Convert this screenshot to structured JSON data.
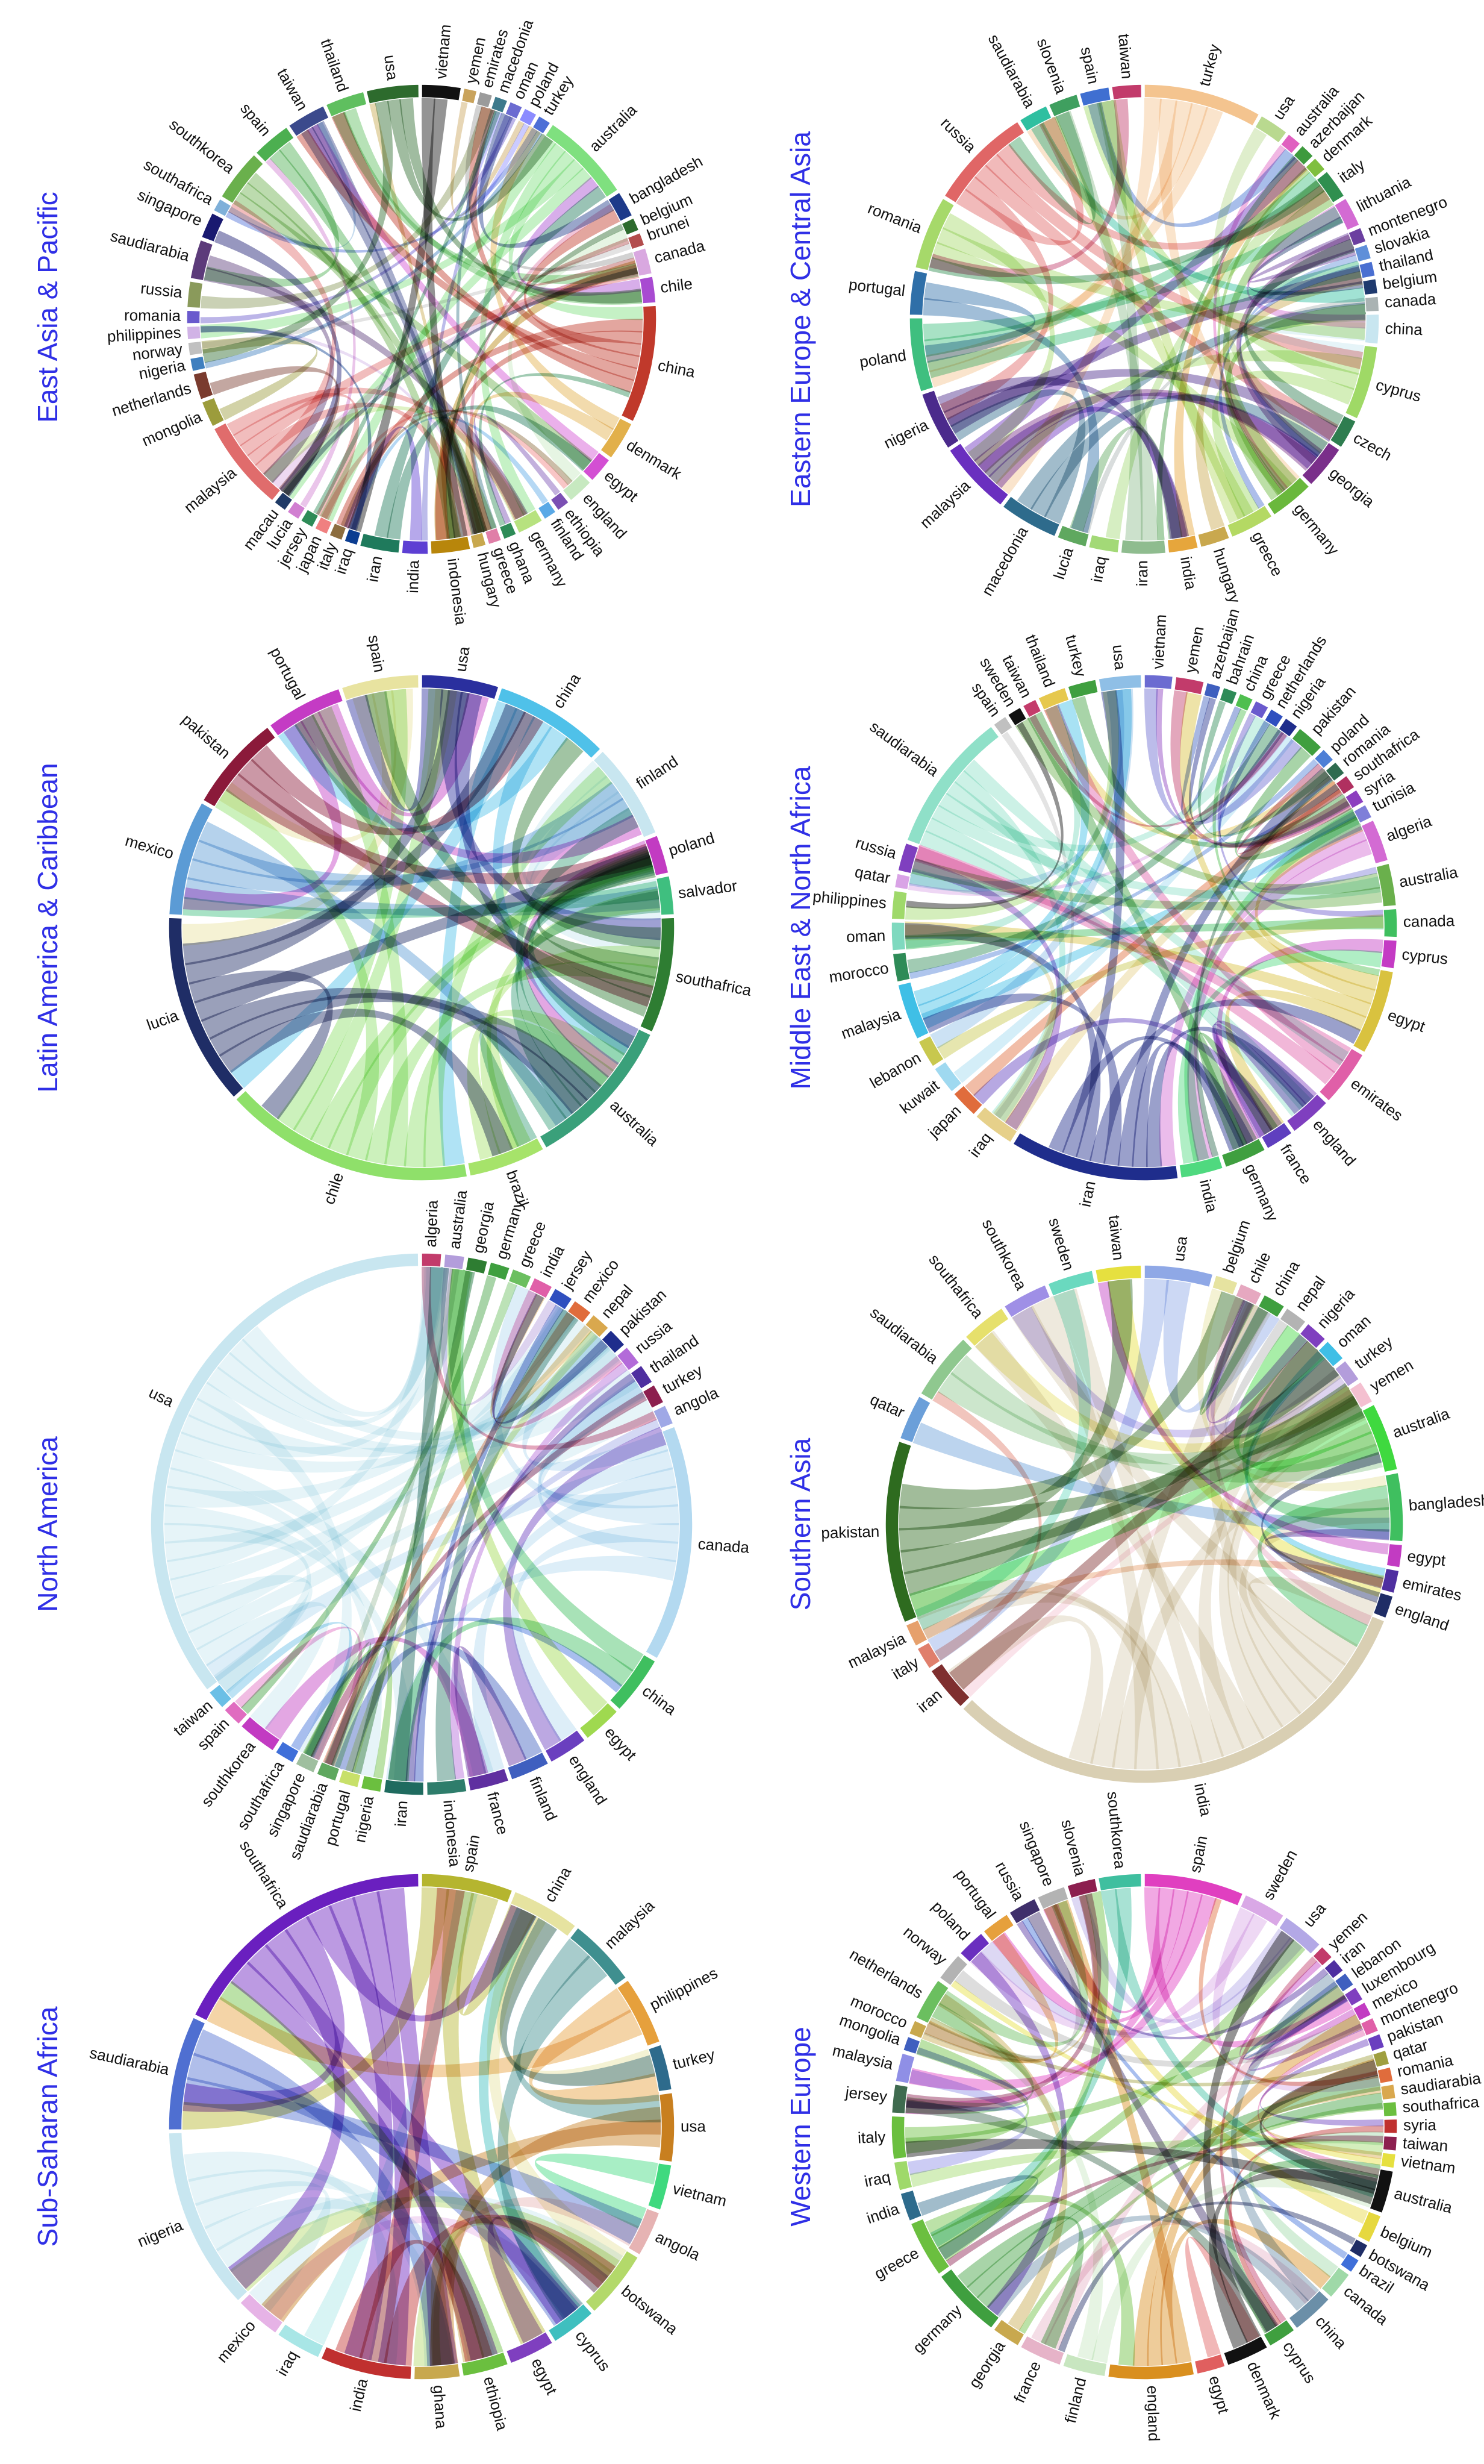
{
  "chart_data": [
    {
      "type": "chord",
      "title": "East Asia & Pacific",
      "countries": [
        "vietnam",
        "yemen",
        "emirates",
        "macedonia",
        "oman",
        "poland",
        "turkey",
        "australia",
        "bangladesh",
        "belgium",
        "brunei",
        "canada",
        "chile",
        "china",
        "denmark",
        "egypt",
        "england",
        "ethiopia",
        "finland",
        "germany",
        "ghana",
        "greece",
        "hungary",
        "indonesia",
        "india",
        "iran",
        "iraq",
        "italy",
        "japan",
        "jersey",
        "lucia",
        "macau",
        "malaysia",
        "mongolia",
        "netherlands",
        "nigeria",
        "norway",
        "philippines",
        "romania",
        "russia",
        "saudiarabia",
        "singapore",
        "southafrica",
        "southkorea",
        "spain",
        "taiwan",
        "thailand",
        "usa"
      ],
      "colors": [
        "#111111",
        "#c9a35c",
        "#9b9b9b",
        "#3d7a8c",
        "#6b6bd1",
        "#8c8cff",
        "#4e6fd6",
        "#7fe07f",
        "#1e3a8a",
        "#2d6b2d",
        "#b34d4d",
        "#d9a8e0",
        "#a84bd1",
        "#c0392b",
        "#e2b04a",
        "#d34fd3",
        "#c7e9c0",
        "#7b4fb3",
        "#5aa9e6",
        "#b7e27f",
        "#2e8b57",
        "#e07fa8",
        "#c8a84e",
        "#b8860b",
        "#5d3fd3",
        "#1f7a5c",
        "#0b3d91",
        "#8c6d3f",
        "#f08080",
        "#2e8b57",
        "#d17fd1",
        "#1f3a66",
        "#e06c6c",
        "#9c9c3c",
        "#7a3b2e",
        "#3f7fbf",
        "#c0c0c0",
        "#d1b3e6",
        "#6a5acd",
        "#8a9a5b",
        "#5c3b7a",
        "#191970",
        "#7fb0d9",
        "#6ab04c",
        "#4caf50",
        "#3b4a8c",
        "#5fbf5f",
        "#2d6b2d"
      ],
      "values": [
        3,
        1,
        1,
        1,
        1,
        1,
        1,
        7,
        2,
        1,
        1,
        2,
        2,
        9,
        3,
        2,
        2,
        1,
        1,
        2,
        1,
        1,
        1,
        3,
        2,
        3,
        1,
        1,
        1,
        1,
        1,
        1,
        7,
        2,
        2,
        1,
        1,
        1,
        1,
        2,
        3,
        2,
        1,
        4,
        3,
        3,
        3,
        4
      ]
    },
    {
      "type": "chord",
      "title": "Eastern Europe & Central Asia",
      "countries": [
        "turkey",
        "usa",
        "australia",
        "azerbaijan",
        "denmark",
        "italy",
        "lithuania",
        "montenegro",
        "slovakia",
        "thailand",
        "belgium",
        "canada",
        "china",
        "cyprus",
        "czech",
        "georgia",
        "germany",
        "greece",
        "hungary",
        "india",
        "iran",
        "iraq",
        "lucia",
        "macedonia",
        "malaysia",
        "nigeria",
        "poland",
        "portugal",
        "romania",
        "russia",
        "saudiarabia",
        "slovenia",
        "spain",
        "taiwan"
      ],
      "colors": [
        "#f4c48f",
        "#b9d98f",
        "#e060c0",
        "#3e9a3e",
        "#7fbf3f",
        "#2f8f4f",
        "#d36bd3",
        "#6b3fa0",
        "#5f8fd9",
        "#4a6fd1",
        "#1f3a6e",
        "#aab3b3",
        "#c8e6f0",
        "#9fd966",
        "#2e7d4f",
        "#7a2f8a",
        "#6ab83c",
        "#b4d963",
        "#c9a84e",
        "#e6a63c",
        "#8fbc8f",
        "#a3d977",
        "#5fa85f",
        "#2e6b8c",
        "#6a2fbf",
        "#4b2a8c",
        "#3fbf7f",
        "#2f6fa8",
        "#a6d96a",
        "#e06666",
        "#2fbfa0",
        "#3f9f5f",
        "#3f6fd1",
        "#c23b6b"
      ],
      "values": [
        8,
        2,
        1,
        1,
        1,
        2,
        2,
        1,
        1,
        1,
        1,
        1,
        2,
        5,
        2,
        3,
        3,
        3,
        2,
        2,
        3,
        2,
        2,
        4,
        5,
        4,
        5,
        3,
        5,
        7,
        2,
        2,
        2,
        2
      ]
    },
    {
      "type": "chord",
      "title": "Latin America & Caribbean",
      "countries": [
        "usa",
        "china",
        "finland",
        "poland",
        "salvador",
        "southafrica",
        "australia",
        "brazil",
        "chile",
        "lucia",
        "mexico",
        "pakistan",
        "portugal",
        "spain"
      ],
      "colors": [
        "#2a2f9e",
        "#4fc1e9",
        "#c8e6f0",
        "#c23bc2",
        "#3fbf7f",
        "#2e7d32",
        "#3aa07a",
        "#a6e36a",
        "#8fe06a",
        "#1f2d66",
        "#5b9bd5",
        "#8b1a3a",
        "#c43bc4",
        "#e8e3a0"
      ],
      "values": [
        4,
        6,
        5,
        2,
        2,
        6,
        8,
        4,
        13,
        10,
        6,
        5,
        4,
        4
      ]
    },
    {
      "type": "chord",
      "title": "Middle East & North Africa",
      "countries": [
        "vietnam",
        "yemen",
        "azerbaijan",
        "bahrain",
        "china",
        "greece",
        "netherlands",
        "nigeria",
        "pakistan",
        "poland",
        "romania",
        "southafrica",
        "syria",
        "tunisia",
        "algeria",
        "australia",
        "canada",
        "cyprus",
        "egypt",
        "emirates",
        "england",
        "france",
        "germany",
        "india",
        "iran",
        "iraq",
        "japan",
        "kuwait",
        "lebanon",
        "malaysia",
        "morocco",
        "oman",
        "philippines",
        "qatar",
        "russia",
        "saudiarabia",
        "spain",
        "sweden",
        "taiwan",
        "thailand",
        "turkey",
        "usa"
      ],
      "colors": [
        "#6b6bd1",
        "#c23b6b",
        "#3f5fbf",
        "#2e8b57",
        "#4fbf4f",
        "#6a5acd",
        "#2f4fbf",
        "#1f2d8c",
        "#3f9f3f",
        "#4e7fd6",
        "#2e6b4f",
        "#b03060",
        "#8c3fbf",
        "#7f7fd9",
        "#d36bd3",
        "#6ab04c",
        "#3fbf5f",
        "#c43bc4",
        "#d9c23f",
        "#e05fa8",
        "#7f3fbf",
        "#5f3fbf",
        "#3f9f3f",
        "#4fd97f",
        "#1f2d8c",
        "#e6d08a",
        "#e06c3c",
        "#9fd9f0",
        "#c8c84e",
        "#3fbfe6",
        "#2e8b57",
        "#7fd9bf",
        "#9fd96a",
        "#d9a3e6",
        "#7f3fbf",
        "#8fe0c8",
        "#c0c0c0",
        "#111111",
        "#c43b6b",
        "#e6c84e",
        "#3f9f3f",
        "#8fbfe6"
      ],
      "values": [
        2,
        2,
        1,
        1,
        1,
        1,
        1,
        1,
        2,
        1,
        1,
        1,
        1,
        1,
        3,
        3,
        2,
        2,
        6,
        4,
        3,
        2,
        3,
        3,
        12,
        3,
        2,
        2,
        2,
        4,
        2,
        2,
        2,
        1,
        2,
        10,
        1,
        1,
        1,
        2,
        2,
        3
      ]
    },
    {
      "type": "chord",
      "title": "North America",
      "countries": [
        "algeria",
        "australia",
        "georgia",
        "germany",
        "greece",
        "india",
        "jersey",
        "mexico",
        "nepal",
        "pakistan",
        "russia",
        "thailand",
        "turkey",
        "angola",
        "canada",
        "china",
        "egypt",
        "england",
        "finland",
        "france",
        "indonesia",
        "iran",
        "nigeria",
        "portugal",
        "saudiarabia",
        "singapore",
        "southafrica",
        "southkorea",
        "spain",
        "taiwan",
        "usa"
      ],
      "colors": [
        "#c23b6b",
        "#b39ddb",
        "#2e7d32",
        "#3f9f3f",
        "#6bbf5f",
        "#e05fa8",
        "#2f4fbf",
        "#e06c3c",
        "#d9a84e",
        "#1f2d8c",
        "#b36bd9",
        "#4f2fa0",
        "#8c1f4f",
        "#9fa8e6",
        "#b3d9f0",
        "#3fbf5f",
        "#9fd94f",
        "#6a3fbf",
        "#3f5fbf",
        "#5f2fa0",
        "#2e7d6b",
        "#1f6b5f",
        "#6bbf3f",
        "#c8e06a",
        "#5fa85f",
        "#9fbf9f",
        "#3f6fd9",
        "#c23bc2",
        "#e06cc0",
        "#6bbfe6",
        "#c8e6f0"
      ],
      "values": [
        1,
        1,
        1,
        1,
        1,
        1,
        1,
        1,
        1,
        1,
        1,
        1,
        1,
        1,
        12,
        3,
        2,
        2,
        2,
        2,
        2,
        2,
        1,
        1,
        1,
        1,
        1,
        2,
        1,
        1,
        30
      ]
    },
    {
      "type": "chord",
      "title": "Southern Asia",
      "countries": [
        "usa",
        "belgium",
        "chile",
        "china",
        "nepal",
        "nigeria",
        "oman",
        "turkey",
        "yemen",
        "australia",
        "bangladesh",
        "egypt",
        "emirates",
        "england",
        "india",
        "iran",
        "italy",
        "malaysia",
        "pakistan",
        "qatar",
        "saudiarabia",
        "southafrica",
        "southkorea",
        "sweden",
        "taiwan"
      ],
      "colors": [
        "#8fa8e6",
        "#e6e3a0",
        "#e6a8c0",
        "#3f9f3f",
        "#b3b3b3",
        "#7f3fbf",
        "#3fbfe6",
        "#b39ddb",
        "#f4c0d0",
        "#3fd93f",
        "#3fbf5f",
        "#c23bc2",
        "#4f2fa0",
        "#1f2d66",
        "#d9cfb3",
        "#7f2f2f",
        "#e07f6c",
        "#e6a06c",
        "#2e6b1f",
        "#6b9fd9",
        "#8fc88f",
        "#e6e06c",
        "#9f8fe6",
        "#6ad9bf",
        "#e6e03f"
      ],
      "values": [
        3,
        1,
        1,
        1,
        1,
        1,
        1,
        1,
        1,
        3,
        3,
        1,
        1,
        1,
        22,
        2,
        1,
        1,
        8,
        2,
        3,
        2,
        2,
        2,
        2
      ]
    },
    {
      "type": "chord",
      "title": "Sub-Saharan Africa",
      "countries": [
        "spain",
        "china",
        "malaysia",
        "philippines",
        "turkey",
        "usa",
        "vietnam",
        "angola",
        "botswana",
        "cyprus",
        "egypt",
        "ethiopia",
        "ghana",
        "india",
        "iraq",
        "mexico",
        "nigeria",
        "saudiarabia",
        "southafrica"
      ],
      "colors": [
        "#b5b52f",
        "#e6e3a0",
        "#3f8f8f",
        "#e6a03c",
        "#2e6b8c",
        "#c87f1f",
        "#3fd97f",
        "#e6b3b3",
        "#b3d96a",
        "#3fbfbf",
        "#7f3fbf",
        "#6bbf3f",
        "#c8a84e",
        "#c0302f",
        "#a8e6e6",
        "#e6b3e6",
        "#c8e6f0",
        "#4f6fd1",
        "#6a1fbf"
      ],
      "values": [
        4,
        3,
        3,
        3,
        2,
        3,
        2,
        2,
        3,
        2,
        2,
        2,
        2,
        4,
        2,
        2,
        8,
        5,
        12
      ]
    },
    {
      "type": "chord",
      "title": "Western Europe",
      "countries": [
        "spain",
        "sweden",
        "usa",
        "yemen",
        "iran",
        "lebanon",
        "luxembourg",
        "mexico",
        "montenegro",
        "pakistan",
        "qatar",
        "romania",
        "saudiarabia",
        "southafrica",
        "syria",
        "taiwan",
        "vietnam",
        "australia",
        "belgium",
        "botswana",
        "brazil",
        "canada",
        "china",
        "cyprus",
        "denmark",
        "egypt",
        "england",
        "finland",
        "france",
        "georgia",
        "germany",
        "greece",
        "india",
        "iraq",
        "italy",
        "jersey",
        "malaysia",
        "mongolia",
        "morocco",
        "netherlands",
        "norway",
        "poland",
        "portugal",
        "russia",
        "singapore",
        "slovenia",
        "southkorea"
      ],
      "colors": [
        "#e03fc0",
        "#d9a8e6",
        "#b3a8e6",
        "#c23b6b",
        "#4f2fa0",
        "#3f5fbf",
        "#7f3fbf",
        "#c23bc2",
        "#e05fa8",
        "#6a3fbf",
        "#9f9f3f",
        "#e06c3c",
        "#d9a84e",
        "#6bbf3f",
        "#c0302f",
        "#8c1f4f",
        "#e6e03f",
        "#111111",
        "#e6d83f",
        "#1f2d66",
        "#3f6fd9",
        "#9fd9a8",
        "#6b8fa8",
        "#3f9f3f",
        "#111111",
        "#e05f5f",
        "#d98f1f",
        "#c8e6c0",
        "#e6b3c8",
        "#c8a84e",
        "#3f9f3f",
        "#6bbf3f",
        "#2e6b8c",
        "#9fd96a",
        "#6bbf3f",
        "#3f6b4f",
        "#8f8fe6",
        "#3f5fbf",
        "#c8a84e",
        "#6bbf5f",
        "#b3b3b3",
        "#6a2fbf",
        "#e6a03c",
        "#3f2f6b",
        "#b3b3b3",
        "#8c1f4f",
        "#3fbf9f"
      ],
      "values": [
        7,
        3,
        3,
        1,
        1,
        1,
        1,
        1,
        1,
        1,
        1,
        1,
        1,
        1,
        1,
        1,
        1,
        3,
        2,
        1,
        1,
        2,
        3,
        2,
        3,
        2,
        6,
        3,
        3,
        2,
        5,
        4,
        2,
        2,
        3,
        2,
        2,
        1,
        1,
        3,
        2,
        2,
        2,
        2,
        2,
        2,
        3
      ]
    }
  ]
}
